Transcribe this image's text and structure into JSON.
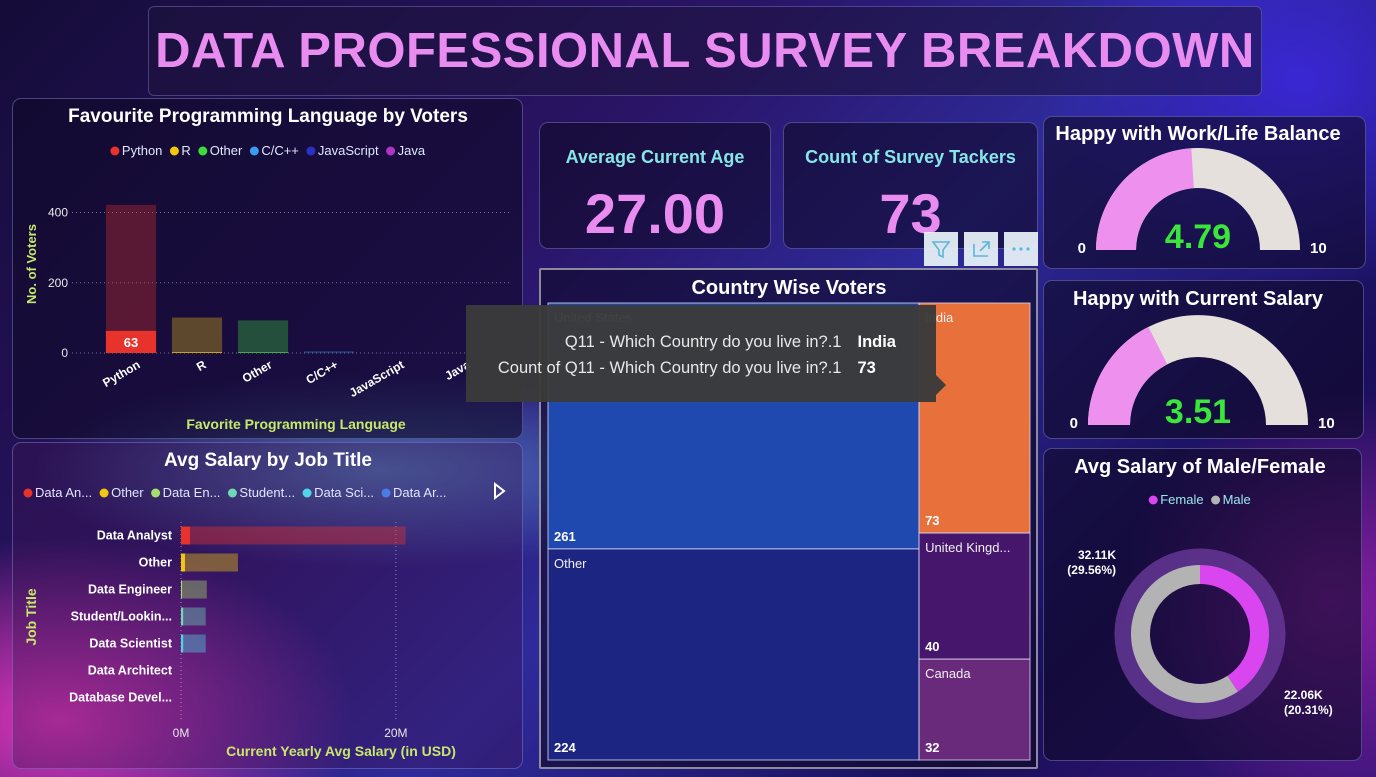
{
  "header": {
    "title": "DATA PROFESSIONAL SURVEY BREAKDOWN"
  },
  "kpis": [
    {
      "label": "Average Current Age",
      "value": "27.00"
    },
    {
      "label": "Count of Survey Tackers",
      "value": 73
    }
  ],
  "chart_data": [
    {
      "type": "bar",
      "title": "Favourite Programming Language by Voters",
      "categories": [
        "Python",
        "R",
        "Other",
        "C/C++",
        "JavaScript",
        "Java"
      ],
      "colors": [
        "#e8322c",
        "#f2c80f",
        "#3bdc3b",
        "#3a9cf0",
        "#2a32c4",
        "#b033c6"
      ],
      "values": [
        422,
        101,
        93,
        5,
        1,
        0
      ],
      "highlight_values": [
        63,
        2,
        2,
        0,
        0,
        0
      ],
      "xlabel": "Favorite Programming Language",
      "ylabel": "No. of Voters",
      "ylim": [
        0,
        450
      ],
      "yticks": [
        0,
        200,
        400
      ],
      "grid": true,
      "legend": "top"
    },
    {
      "type": "barh",
      "title": "Avg Salary by Job Title",
      "legend_labels": [
        "Data An...",
        "Other",
        "Data En...",
        "Student...",
        "Data Sci...",
        "Data Ar..."
      ],
      "categories": [
        "Data Analyst",
        "Other",
        "Data Engineer",
        "Student/Lookin...",
        "Data Scientist",
        "Data Architect",
        "Database Devel..."
      ],
      "colors": [
        "#e8322c",
        "#f2c80f",
        "#a8dc6b",
        "#6fd8b8",
        "#4fd6e6",
        "#4a7de6",
        "#b033c6"
      ],
      "values": [
        20900000,
        5300000,
        2400000,
        2300000,
        2300000,
        0,
        0
      ],
      "highlight_values": [
        840000,
        370000,
        100000,
        200000,
        200000,
        0,
        0
      ],
      "xlabel": "Current Yearly Avg Salary (in USD)",
      "ylabel": "Job Title",
      "xlim": [
        0,
        21500000
      ],
      "xticks": [
        {
          "value": 0,
          "label": "0M"
        },
        {
          "value": 20000000,
          "label": "20M"
        }
      ],
      "grid": true,
      "legend": "top"
    },
    {
      "type": "gauge",
      "title": "Happy with Work/Life Balance",
      "value": 4.79,
      "min": 0,
      "max": 10,
      "color": "#ee90ee",
      "track_color": "#e6e0dc",
      "value_color": "#39e639"
    },
    {
      "type": "gauge",
      "title": "Happy with Current Salary",
      "value": 3.51,
      "min": 0,
      "max": 10,
      "color": "#ee90ee",
      "track_color": "#e6e0dc",
      "value_color": "#39e639"
    },
    {
      "type": "treemap",
      "title": "Country Wise Voters",
      "categories": [
        "United States",
        "Other",
        "India",
        "United Kingd...",
        "Canada"
      ],
      "values": [
        261,
        224,
        73,
        40,
        32
      ],
      "colors": [
        "#2049b0",
        "#1d2582",
        "#e8703a",
        "#46166c",
        "#6a2a7c"
      ]
    },
    {
      "type": "donut",
      "title": "Avg Salary of Male/Female",
      "categories": [
        "Female",
        "Male"
      ],
      "values": [
        22060,
        32110
      ],
      "value_labels": [
        "22.06K\n(20.31%)",
        "32.11K\n(29.56%)"
      ],
      "colors": [
        "#d946ef",
        "#b3b3b3"
      ],
      "legend": "top"
    }
  ],
  "tooltip": {
    "rows": [
      {
        "label": "Q11 - Which Country do you live in?.1",
        "value": "India"
      },
      {
        "label": "Count of Q11 - Which Country do you live in?.1",
        "value": 73
      }
    ]
  }
}
